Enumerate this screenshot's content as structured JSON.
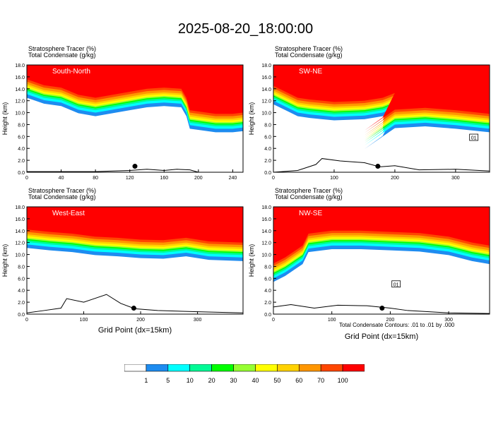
{
  "title": "2025-08-20_18:00:00",
  "legend": {
    "colors": [
      "#ffffff",
      "#1e8cf0",
      "#00ffff",
      "#00fa96",
      "#00ff00",
      "#96ff32",
      "#ffff00",
      "#ffd200",
      "#ff9600",
      "#ff4600",
      "#ff0000"
    ],
    "labels": [
      "1",
      "5",
      "10",
      "20",
      "30",
      "40",
      "50",
      "60",
      "70",
      "100"
    ]
  },
  "footnote": "Total Condensate Contours: .01 to .01 by .000",
  "xlabel": "Grid Point (dx=15km)",
  "ylabel": "Height (km)",
  "line1": "Stratosphere Tracer   (%)",
  "line2": "Total Condensate   (g/kg)",
  "chart_data": [
    {
      "type": "heatmap",
      "panel": "South-North",
      "xlim": [
        0,
        252
      ],
      "ylim": [
        0,
        18
      ],
      "xticks": [
        "0",
        "40",
        "80",
        "120",
        "160",
        "200",
        "240"
      ],
      "xtick_values": [
        0,
        40,
        80,
        120,
        160,
        200,
        240
      ],
      "yticks": [
        "0.0",
        "2.0",
        "4.0",
        "6.0",
        "8.0",
        "10.0",
        "12.0",
        "14.0",
        "16.0",
        "18.0"
      ],
      "ylabel": "Height (km)",
      "tropopause_km": [
        [
          0,
          15.6
        ],
        [
          20,
          14.6
        ],
        [
          40,
          14.2
        ],
        [
          60,
          13.0
        ],
        [
          80,
          12.5
        ],
        [
          100,
          13.0
        ],
        [
          120,
          13.5
        ],
        [
          140,
          14.0
        ],
        [
          160,
          14.2
        ],
        [
          180,
          14.0
        ],
        [
          186,
          12.5
        ],
        [
          190,
          10.4
        ],
        [
          200,
          10.2
        ],
        [
          220,
          9.8
        ],
        [
          240,
          9.8
        ],
        [
          252,
          10.0
        ]
      ],
      "terrain_km": [
        [
          0,
          0.1
        ],
        [
          80,
          0.1
        ],
        [
          100,
          0.2
        ],
        [
          120,
          0.3
        ],
        [
          140,
          0.5
        ],
        [
          160,
          0.3
        ],
        [
          175,
          0.5
        ],
        [
          190,
          0.4
        ],
        [
          200,
          0.0
        ],
        [
          252,
          0.0
        ]
      ],
      "marker": [
        126,
        1.0
      ]
    },
    {
      "type": "heatmap",
      "panel": "SW-NE",
      "xlim": [
        0,
        356
      ],
      "ylim": [
        0,
        18
      ],
      "xticks": [
        "0",
        "100",
        "200",
        "300"
      ],
      "xtick_values": [
        0,
        100,
        200,
        300
      ],
      "yticks": [
        "0.0",
        "2.0",
        "4.0",
        "6.0",
        "8.0",
        "10.0",
        "12.0",
        "14.0",
        "16.0",
        "18.0"
      ],
      "ylabel": "Height (km)",
      "contour_label": "01",
      "tropopause_km": [
        [
          0,
          14.5
        ],
        [
          20,
          13.5
        ],
        [
          40,
          12.5
        ],
        [
          60,
          12.2
        ],
        [
          80,
          12.0
        ],
        [
          100,
          11.8
        ],
        [
          150,
          12.0
        ],
        [
          180,
          12.5
        ],
        [
          200,
          13.3
        ],
        [
          180,
          9.2
        ],
        [
          150,
          7.0
        ],
        [
          200,
          10.5
        ],
        [
          250,
          10.8
        ],
        [
          300,
          10.4
        ],
        [
          356,
          9.8
        ]
      ],
      "terrain_km": [
        [
          0,
          0
        ],
        [
          40,
          0.3
        ],
        [
          70,
          1.3
        ],
        [
          80,
          2.3
        ],
        [
          110,
          1.9
        ],
        [
          150,
          1.6
        ],
        [
          175,
          0.9
        ],
        [
          200,
          1.1
        ],
        [
          240,
          0.4
        ],
        [
          300,
          0.5
        ],
        [
          356,
          0.2
        ]
      ],
      "marker": [
        172,
        1.0
      ]
    },
    {
      "type": "heatmap",
      "panel": "West-East",
      "xlim": [
        0,
        380
      ],
      "ylim": [
        0,
        18
      ],
      "xticks": [
        "0",
        "100",
        "200",
        "300"
      ],
      "xtick_values": [
        0,
        100,
        200,
        300
      ],
      "yticks": [
        "0.0",
        "2.0",
        "4.0",
        "6.0",
        "8.0",
        "10.0",
        "12.0",
        "14.0",
        "16.0",
        "18.0"
      ],
      "ylabel": "Height (km)",
      "xlabel": "Grid Point (dx=15km)",
      "tropopause_km": [
        [
          0,
          14.2
        ],
        [
          40,
          13.8
        ],
        [
          80,
          13.5
        ],
        [
          120,
          13.0
        ],
        [
          160,
          12.8
        ],
        [
          200,
          12.5
        ],
        [
          240,
          12.4
        ],
        [
          280,
          12.8
        ],
        [
          320,
          12.2
        ],
        [
          380,
          12.0
        ]
      ],
      "terrain_km": [
        [
          0,
          0.2
        ],
        [
          30,
          0.6
        ],
        [
          60,
          1.0
        ],
        [
          70,
          2.6
        ],
        [
          100,
          2.0
        ],
        [
          140,
          3.3
        ],
        [
          165,
          1.8
        ],
        [
          190,
          0.9
        ],
        [
          230,
          0.6
        ],
        [
          300,
          0.4
        ],
        [
          380,
          0.2
        ]
      ],
      "marker": [
        188,
        1.0
      ]
    },
    {
      "type": "heatmap",
      "panel": "NW-SE",
      "xlim": [
        0,
        370
      ],
      "ylim": [
        0,
        18
      ],
      "xticks": [
        "0",
        "100",
        "200",
        "300"
      ],
      "xtick_values": [
        0,
        100,
        200,
        300
      ],
      "yticks": [
        "0.0",
        "2.0",
        "4.0",
        "6.0",
        "8.0",
        "10.0",
        "12.0",
        "14.0",
        "16.0",
        "18.0"
      ],
      "ylabel": "Height (km)",
      "xlabel": "Grid Point (dx=15km)",
      "contour_label": "01",
      "tropopause_km": [
        [
          0,
          8.5
        ],
        [
          20,
          9.5
        ],
        [
          50,
          11.5
        ],
        [
          60,
          13.5
        ],
        [
          100,
          14.0
        ],
        [
          150,
          14.0
        ],
        [
          200,
          13.8
        ],
        [
          250,
          13.6
        ],
        [
          300,
          13.0
        ],
        [
          340,
          12.0
        ],
        [
          370,
          11.5
        ]
      ],
      "terrain_km": [
        [
          0,
          1.2
        ],
        [
          30,
          1.6
        ],
        [
          70,
          1.0
        ],
        [
          110,
          1.5
        ],
        [
          160,
          1.4
        ],
        [
          200,
          1.0
        ],
        [
          230,
          0.6
        ],
        [
          300,
          0.2
        ],
        [
          370,
          0.1
        ]
      ],
      "marker": [
        186,
        1.0
      ]
    }
  ]
}
